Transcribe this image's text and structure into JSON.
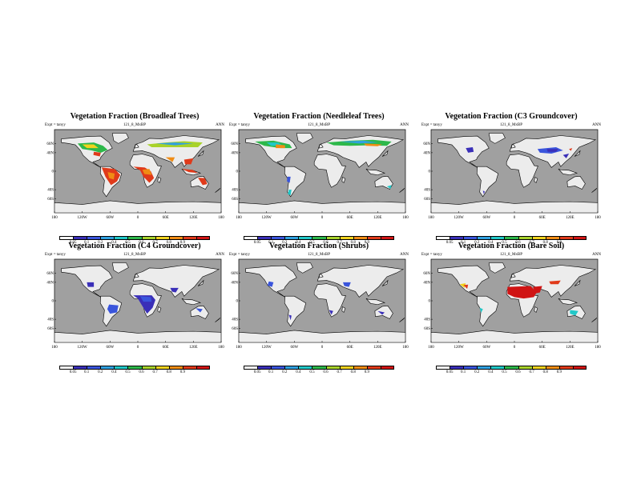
{
  "subtitle": "121_8_MxBP",
  "expt_label": "Expt = tanyy",
  "season": "ANN",
  "x_ticks": [
    "180",
    "120W",
    "60W",
    "0",
    "60E",
    "120E",
    "180"
  ],
  "y_ticks": [
    "60N",
    "40N",
    "0",
    "40S",
    "60S"
  ],
  "colorbar_labels": [
    "0.05",
    "0.1",
    "0.2",
    "0.4",
    "0.5",
    "0.6",
    "0.7",
    "0.8",
    "0.9"
  ],
  "colorbar_colors": [
    "#ffffff",
    "#3a2fb8",
    "#3a55dc",
    "#2fa0e0",
    "#21c8c8",
    "#2db84a",
    "#a8d22a",
    "#f0d21e",
    "#f08c14",
    "#e03a1a",
    "#d01414"
  ],
  "colors": {
    "ocean": "#a0a0a0",
    "land": "#ececec",
    "coast": "#000000"
  },
  "panels": [
    {
      "title": "Vegetation Fraction (Broadleaf Trees)",
      "variable": "broadleaf",
      "colorbar_first_label": "0.05"
    },
    {
      "title": "Vegetation Fraction (Needleleaf Trees)",
      "variable": "needleleaf",
      "colorbar_first_label": "0.05"
    },
    {
      "title": "Vegetation Fraction (C3 Groundcover)",
      "variable": "c3",
      "colorbar_first_label": "0.05"
    },
    {
      "title": "Vegetation Fraction (C4 Groundcover)",
      "variable": "c4",
      "colorbar_first_label": "0.05"
    },
    {
      "title": "Vegetation Fraction (Shrubs)",
      "variable": "shrubs",
      "colorbar_first_label": "0.05"
    },
    {
      "title": "Vegetation Fraction (Bare Soil)",
      "variable": "baresoil",
      "colorbar_first_label": "0.05"
    }
  ]
}
